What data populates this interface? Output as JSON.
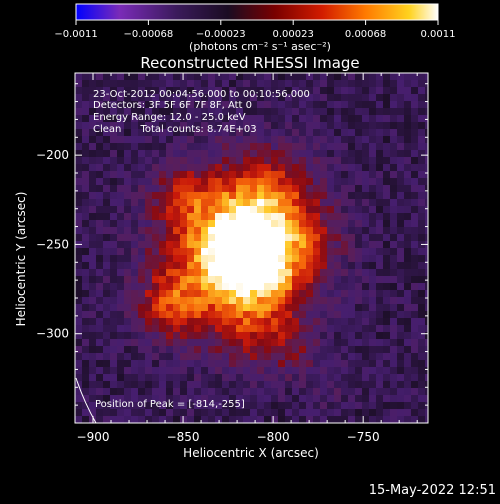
{
  "colors": {
    "background": "#000000",
    "foreground": "#ffffff",
    "colorbar_stops": [
      "#0000ff",
      "#7a2bb8",
      "#3a1a5a",
      "#1a0c22",
      "#7a0000",
      "#d21c00",
      "#ff7a00",
      "#ffd21e",
      "#ffffff"
    ]
  },
  "colorbar": {
    "tick_labels": [
      "-0.0011",
      "-0.00068",
      "-0.00023",
      "0.00023",
      "0.00068",
      "0.0011"
    ],
    "unit_label": "(photons cm⁻² s⁻¹ asec⁻²)",
    "range": [
      -0.0011,
      0.0011
    ]
  },
  "info": {
    "line1": "23-Oct-2012 00:04:56.000 to 00:10:56.000",
    "line2": "Detectors: 3F 5F 6F 7F 8F, Att 0",
    "line3": "Energy Range: 12.0 - 25.0 keV",
    "line4": "Clean      Total counts: 8.74E+03",
    "peak": "Position of Peak = [-814,-255]"
  },
  "timestamp": "15-May-2022 12:51",
  "chart_data": {
    "type": "heatmap",
    "title": "Reconstructed RHESSI Image",
    "xlabel": "Heliocentric X (arcsec)",
    "ylabel": "Heliocentric Y (arcsec)",
    "xlim": [
      -910,
      -714
    ],
    "ylim": [
      -350,
      -154
    ],
    "x_ticks": [
      -900,
      -850,
      -800,
      -750
    ],
    "x_tick_labels": [
      "-900",
      "-850",
      "-800",
      "-750"
    ],
    "y_ticks": [
      -200,
      -250,
      -300
    ],
    "y_tick_labels": [
      "-200",
      "-250",
      "-300"
    ],
    "peak": [
      -814,
      -255
    ],
    "grid": false,
    "limb_arc": true
  }
}
